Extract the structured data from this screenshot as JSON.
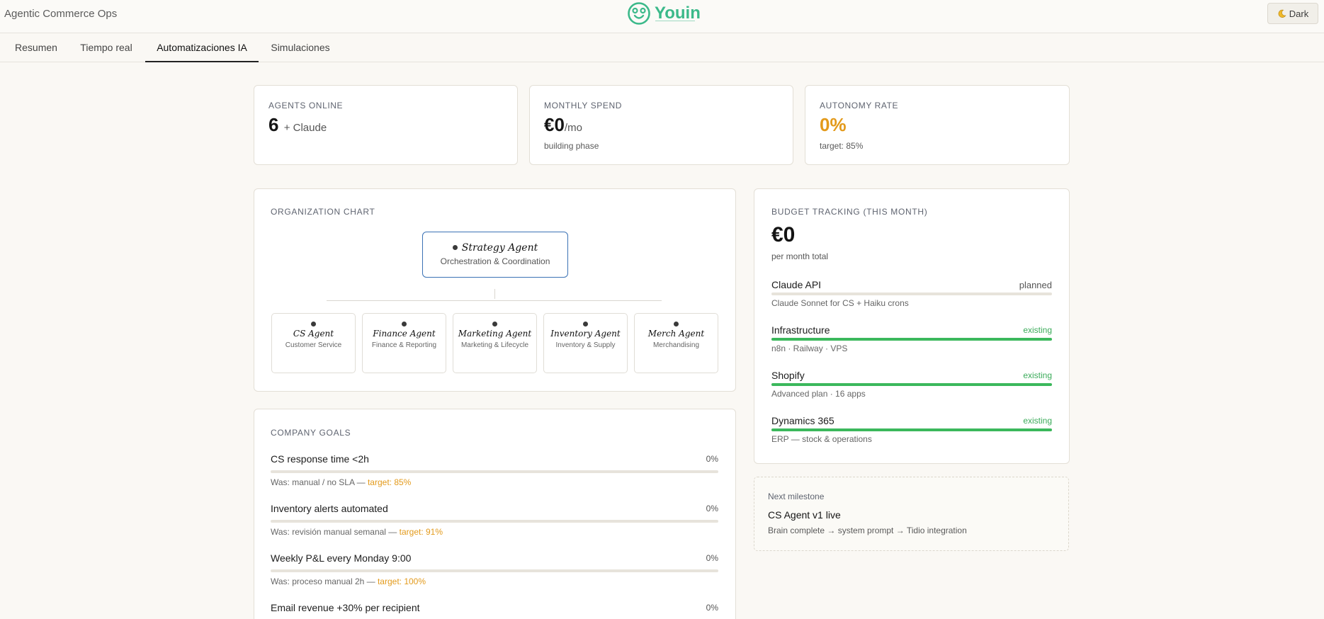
{
  "header": {
    "app_title": "Agentic Commerce Ops",
    "logo_text": "Youin",
    "theme_label": "Dark",
    "theme_icon": "moon-icon",
    "brand_color": "#3bb98a"
  },
  "tabs": [
    {
      "label": "Resumen",
      "active": false
    },
    {
      "label": "Tiempo real",
      "active": false
    },
    {
      "label": "Automatizaciones IA",
      "active": true
    },
    {
      "label": "Simulaciones",
      "active": false
    }
  ],
  "kpis": {
    "agents": {
      "label": "AGENTS ONLINE",
      "value": "6",
      "suffix": "+ Claude"
    },
    "spend": {
      "label": "MONTHLY SPEND",
      "value": "€0",
      "suffix": "/mo",
      "sub": "building phase"
    },
    "autonomy": {
      "label": "AUTONOMY RATE",
      "value": "0%",
      "sub": "target: 85%",
      "value_color": "#e39a1b"
    }
  },
  "org": {
    "label": "ORGANIZATION CHART",
    "top": {
      "name": "Strategy Agent",
      "role": "Orchestration & Coordination"
    },
    "children": [
      {
        "name": "CS Agent",
        "role": "Customer Service"
      },
      {
        "name": "Finance Agent",
        "role": "Finance & Reporting"
      },
      {
        "name": "Marketing Agent",
        "role": "Marketing & Lifecycle"
      },
      {
        "name": "Inventory Agent",
        "role": "Inventory & Supply"
      },
      {
        "name": "Merch Agent",
        "role": "Merchandising"
      }
    ]
  },
  "goals": {
    "label": "COMPANY GOALS",
    "items": [
      {
        "name": "CS response time <2h",
        "pct": "0%",
        "progress": 0,
        "was": "Was: manual / no SLA —",
        "target": "target: 85%"
      },
      {
        "name": "Inventory alerts automated",
        "pct": "0%",
        "progress": 0,
        "was": "Was: revisión manual semanal —",
        "target": "target: 91%"
      },
      {
        "name": "Weekly P&L every Monday 9:00",
        "pct": "0%",
        "progress": 0,
        "was": "Was: proceso manual 2h —",
        "target": "target: 100%"
      },
      {
        "name": "Email revenue +30% per recipient",
        "pct": "0%",
        "progress": 0,
        "was": "",
        "target": ""
      }
    ]
  },
  "budget": {
    "label": "BUDGET TRACKING (THIS MONTH)",
    "total": "€0",
    "total_sub": "per month total",
    "items": [
      {
        "name": "Claude API",
        "status": "planned",
        "desc": "Claude Sonnet for CS + Haiku crons",
        "progress": 0
      },
      {
        "name": "Infrastructure",
        "status": "existing",
        "desc": "n8n · Railway · VPS",
        "progress": 1
      },
      {
        "name": "Shopify",
        "status": "existing",
        "desc": "Advanced plan · 16 apps",
        "progress": 1
      },
      {
        "name": "Dynamics 365",
        "status": "existing",
        "desc": "ERP — stock & operations",
        "progress": 1
      }
    ]
  },
  "milestone": {
    "label": "Next milestone",
    "title": "CS Agent v1 live",
    "desc": "Brain complete → system prompt → Tidio integration"
  }
}
